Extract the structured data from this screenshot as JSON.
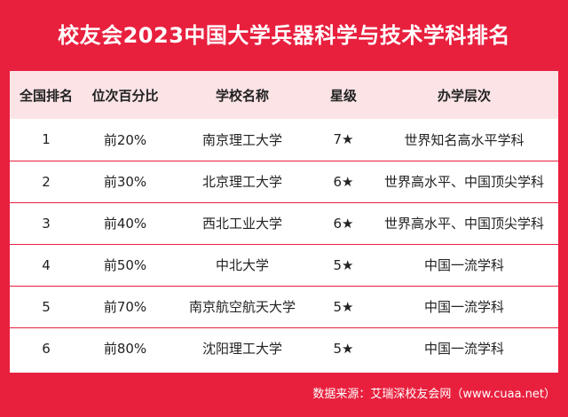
{
  "title": "校友会2023中国大学兵器科学与技术学科排名",
  "headers": {
    "rank": "全国排名",
    "percent": "位次百分比",
    "school": "学校名称",
    "star": "星级",
    "level": "办学层次"
  },
  "rows": [
    {
      "rank": "1",
      "percent": "前20%",
      "school": "南京理工大学",
      "star": "7★",
      "level": "世界知名高水平学科"
    },
    {
      "rank": "2",
      "percent": "前30%",
      "school": "北京理工大学",
      "star": "6★",
      "level": "世界高水平、中国顶尖学科"
    },
    {
      "rank": "3",
      "percent": "前40%",
      "school": "西北工业大学",
      "star": "6★",
      "level": "世界高水平、中国顶尖学科"
    },
    {
      "rank": "4",
      "percent": "前50%",
      "school": "中北大学",
      "star": "5★",
      "level": "中国一流学科"
    },
    {
      "rank": "5",
      "percent": "前70%",
      "school": "南京航空航天大学",
      "star": "5★",
      "level": "中国一流学科"
    },
    {
      "rank": "6",
      "percent": "前80%",
      "school": "沈阳理工大学",
      "star": "5★",
      "level": "中国一流学科"
    }
  ],
  "footer": "数据来源：艾瑞深校友会网（www.cuaa.net）",
  "colors": {
    "background": "#e8203e",
    "header_row": "#fbe3e6",
    "text": "#222222"
  }
}
